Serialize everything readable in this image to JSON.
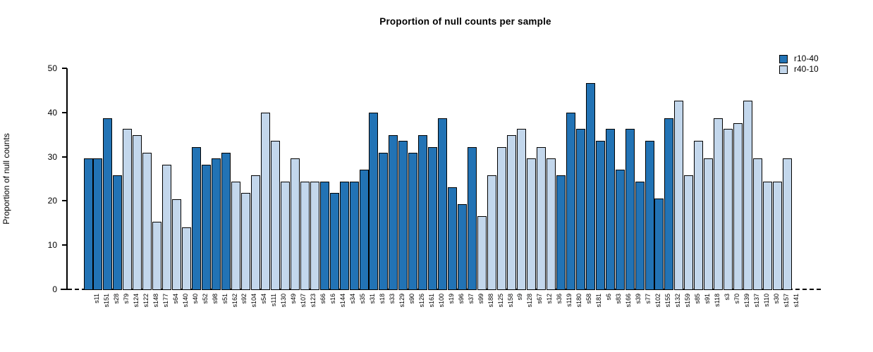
{
  "title": "Proportion of null counts per sample",
  "legend": {
    "entries": [
      {
        "label": "r10-40",
        "color": "#2273B5"
      },
      {
        "label": "r40-10",
        "color": "#C3D7EC"
      }
    ]
  },
  "chart_data": {
    "type": "bar",
    "title": "Proportion of null counts per sample",
    "xlabel": "",
    "ylabel": "Proportion of null counts",
    "ylim": [
      0,
      50
    ],
    "yticks": [
      0,
      10,
      20,
      30,
      40,
      50
    ],
    "grid": false,
    "legend_position": "top-right",
    "bar_edge_color": "#000000",
    "zero_line_style": "dashed",
    "series_colors": {
      "r10-40": "#2273B5",
      "r40-10": "#C3D7EC"
    },
    "categories": [
      "s11",
      "s151",
      "s28",
      "s79",
      "s124",
      "s122",
      "s148",
      "s177",
      "s64",
      "s140",
      "s40",
      "s52",
      "s98",
      "s51",
      "s162",
      "s92",
      "s104",
      "s54",
      "s111",
      "s130",
      "s49",
      "s107",
      "s123",
      "s66",
      "s16",
      "s144",
      "s34",
      "s35",
      "s31",
      "s18",
      "s33",
      "s129",
      "s90",
      "s126",
      "s161",
      "s100",
      "s19",
      "s96",
      "s37",
      "s99",
      "s188",
      "s125",
      "s158",
      "s9",
      "s128",
      "s67",
      "s12",
      "s36",
      "s119",
      "s180",
      "s58",
      "s181",
      "s6",
      "s83",
      "s166",
      "s39",
      "s77",
      "s102",
      "s155",
      "s132",
      "s159",
      "s85",
      "s91",
      "s118",
      "s3",
      "s70",
      "s139",
      "s137",
      "s110",
      "s30",
      "s157",
      "s141"
    ],
    "values": [
      29.7,
      29.7,
      38.9,
      25.9,
      36.4,
      35.0,
      31.1,
      15.5,
      28.4,
      20.6,
      14.2,
      32.4,
      28.4,
      29.7,
      31.1,
      24.5,
      21.9,
      25.9,
      40.2,
      33.8,
      24.5,
      29.7,
      24.5,
      24.5,
      24.5,
      21.9,
      24.5,
      24.5,
      27.2,
      40.2,
      31.1,
      35.0,
      33.8,
      31.1,
      35.0,
      32.4,
      38.9,
      23.2,
      19.4,
      32.4,
      16.7,
      25.9,
      32.4,
      35.0,
      36.4,
      29.7,
      32.4,
      29.7,
      25.9,
      40.2,
      36.4,
      46.8,
      33.8,
      36.4,
      27.2,
      36.4,
      24.6,
      33.8,
      20.7,
      38.9,
      42.9,
      25.9,
      33.8,
      29.7,
      38.9,
      36.4,
      37.7,
      42.9,
      29.7,
      24.5,
      24.5,
      29.7
    ],
    "groups": [
      "r10-40",
      "r10-40",
      "r10-40",
      "r10-40",
      "r40-10",
      "r40-10",
      "r40-10",
      "r40-10",
      "r40-10",
      "r40-10",
      "r40-10",
      "r10-40",
      "r10-40",
      "r10-40",
      "r10-40",
      "r40-10",
      "r40-10",
      "r40-10",
      "r40-10",
      "r40-10",
      "r40-10",
      "r40-10",
      "r40-10",
      "r40-10",
      "r10-40",
      "r10-40",
      "r10-40",
      "r10-40",
      "r10-40",
      "r10-40",
      "r10-40",
      "r10-40",
      "r10-40",
      "r10-40",
      "r10-40",
      "r10-40",
      "r10-40",
      "r10-40",
      "r10-40",
      "r10-40",
      "r40-10",
      "r40-10",
      "r40-10",
      "r40-10",
      "r40-10",
      "r40-10",
      "r40-10",
      "r40-10",
      "r10-40",
      "r10-40",
      "r10-40",
      "r10-40",
      "r10-40",
      "r10-40",
      "r10-40",
      "r10-40",
      "r10-40",
      "r10-40",
      "r10-40",
      "r10-40",
      "r40-10",
      "r40-10",
      "r40-10",
      "r40-10",
      "r40-10",
      "r40-10",
      "r40-10",
      "r40-10",
      "r40-10",
      "r40-10",
      "r40-10",
      "r40-10"
    ]
  }
}
